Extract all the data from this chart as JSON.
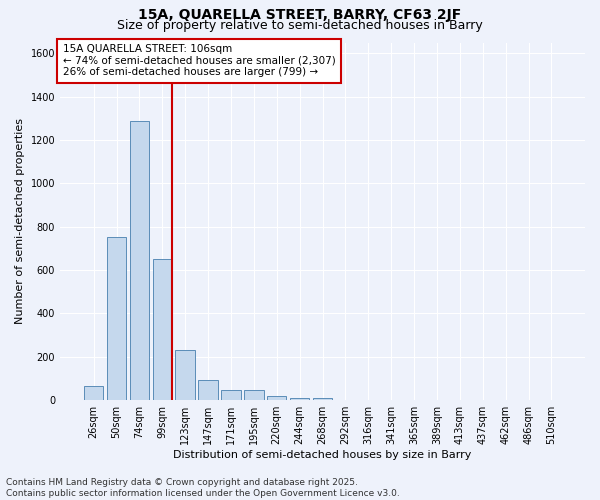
{
  "title_line1": "15A, QUARELLA STREET, BARRY, CF63 2JF",
  "title_line2": "Size of property relative to semi-detached houses in Barry",
  "xlabel": "Distribution of semi-detached houses by size in Barry",
  "ylabel": "Number of semi-detached properties",
  "bar_color": "#c5d8ed",
  "bar_edge_color": "#5b8db8",
  "background_color": "#eef2fb",
  "grid_color": "#ffffff",
  "categories": [
    "26sqm",
    "50sqm",
    "74sqm",
    "99sqm",
    "123sqm",
    "147sqm",
    "171sqm",
    "195sqm",
    "220sqm",
    "244sqm",
    "268sqm",
    "292sqm",
    "316sqm",
    "341sqm",
    "365sqm",
    "389sqm",
    "413sqm",
    "437sqm",
    "462sqm",
    "486sqm",
    "510sqm"
  ],
  "values": [
    65,
    755,
    1290,
    650,
    230,
    95,
    45,
    45,
    20,
    10,
    10,
    0,
    0,
    0,
    0,
    0,
    0,
    0,
    0,
    0,
    0
  ],
  "ylim": [
    0,
    1650
  ],
  "yticks": [
    0,
    200,
    400,
    600,
    800,
    1000,
    1200,
    1400,
    1600
  ],
  "annotation_text_line1": "15A QUARELLA STREET: 106sqm",
  "annotation_text_line2": "← 74% of semi-detached houses are smaller (2,307)",
  "annotation_text_line3": "26% of semi-detached houses are larger (799) →",
  "annotation_box_color": "#ffffff",
  "annotation_box_edge_color": "#cc0000",
  "vline_color": "#cc0000",
  "footer_line1": "Contains HM Land Registry data © Crown copyright and database right 2025.",
  "footer_line2": "Contains public sector information licensed under the Open Government Licence v3.0.",
  "title_fontsize": 10,
  "subtitle_fontsize": 9,
  "axis_label_fontsize": 8,
  "tick_fontsize": 7,
  "annotation_fontsize": 7.5,
  "footer_fontsize": 6.5
}
